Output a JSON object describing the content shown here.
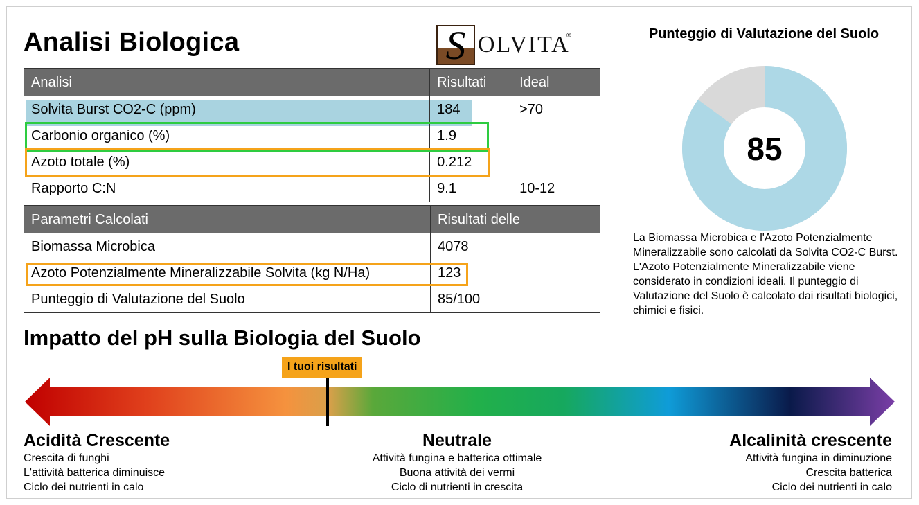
{
  "title": "Analisi Biologica",
  "logo": {
    "text": "OLVITA",
    "letter": "S",
    "reg": "®"
  },
  "analysis_table": {
    "headers": [
      "Analisi",
      "Risultati",
      "Ideal"
    ],
    "rows": [
      [
        "Solvita Burst CO2-C (ppm)",
        "184",
        ">70"
      ],
      [
        "Carbonio organico (%)",
        "1.9",
        ""
      ],
      [
        "Azoto totale (%)",
        "0.212",
        ""
      ],
      [
        "Rapporto C:N",
        "9.1",
        "10-12"
      ]
    ]
  },
  "calc_table": {
    "headers": [
      "Parametri Calcolati",
      "Risultati delle"
    ],
    "rows": [
      [
        "Biomassa Microbica",
        "4078"
      ],
      [
        "Azoto Potenzialmente Mineralizzabile Solvita (kg N/Ha)",
        "123"
      ],
      [
        "Punteggio di Valutazione del Suolo",
        "85/100"
      ]
    ]
  },
  "score": {
    "title": "Punteggio di Valutazione del Suolo",
    "value": "85",
    "fraction": 0.85,
    "description": "La Biomassa Microbica e l'Azoto Potenzialmente Mineralizzabile sono calcolati da Solvita CO2-C Burst. L'Azoto Potenzialmente Mineralizzabile viene considerato in condizioni ideali. Il punteggio di Valutazione del Suolo è calcolato dai risultati biologici, chimici e fisici."
  },
  "ph": {
    "title": "Impatto del pH sulla Biologia del Suolo",
    "marker_label": "I tuoi risultati",
    "acid": {
      "heading": "Acidità Crescente",
      "lines": [
        "Crescita di funghi",
        "L'attività batterica diminuisce",
        "Ciclo dei nutrienti in calo"
      ]
    },
    "neutral": {
      "heading": "Neutrale",
      "lines": [
        "Attività fungina e batterica ottimale",
        "Buona attività dei vermi",
        "Ciclo di nutrienti in crescita"
      ]
    },
    "alkaline": {
      "heading": "Alcalinità crescente",
      "lines": [
        "Attività fungina in diminuzione",
        "Crescita batterica",
        "Ciclo dei nutrienti in calo"
      ]
    }
  },
  "colors": {
    "header_bg": "#6b6b6b",
    "highlight_blue": "#a9d3e0",
    "box_green": "#2ecc40",
    "box_orange": "#f5a31a",
    "donut_fill": "#add8e6",
    "donut_rest": "#d9d9d9"
  }
}
